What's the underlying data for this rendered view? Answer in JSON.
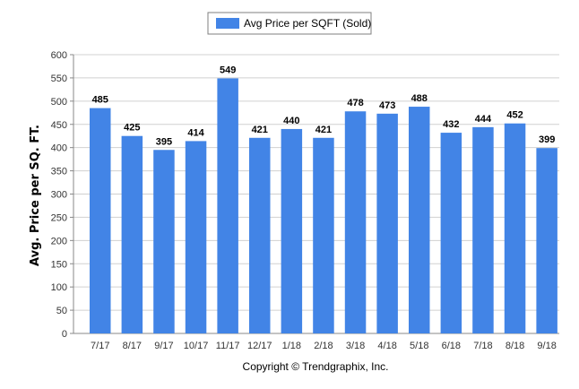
{
  "chart_data": {
    "type": "bar",
    "categories": [
      "7/17",
      "8/17",
      "9/17",
      "10/17",
      "11/17",
      "12/17",
      "1/18",
      "2/18",
      "3/18",
      "4/18",
      "5/18",
      "6/18",
      "7/18",
      "8/18",
      "9/18"
    ],
    "series": [
      {
        "name": "Avg Price per SQFT (Sold)",
        "values": [
          485,
          425,
          395,
          414,
          549,
          421,
          440,
          421,
          478,
          473,
          488,
          432,
          444,
          452,
          399
        ]
      }
    ],
    "ylabel": "Avg. Price per SQ. FT.",
    "xlabel": "",
    "ylim": [
      0,
      600
    ],
    "yticks": [
      0,
      50,
      100,
      150,
      200,
      250,
      300,
      350,
      400,
      450,
      500,
      550,
      600
    ],
    "grid": true,
    "legend_position": "top-center",
    "bar_color": "#4284e6",
    "data_labels": true
  },
  "footer": {
    "copyright": "Copyright © Trendgraphix, Inc."
  }
}
